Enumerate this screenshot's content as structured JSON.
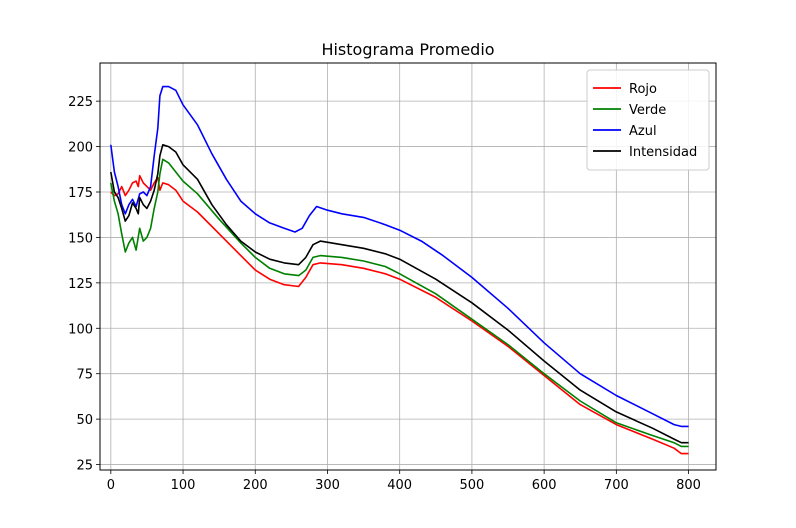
{
  "chart_data": {
    "type": "line",
    "title": "Histograma Promedio",
    "xlabel": "",
    "ylabel": "",
    "xlim": [
      -15,
      838
    ],
    "ylim": [
      22,
      246
    ],
    "xticks": [
      0,
      100,
      200,
      300,
      400,
      500,
      600,
      700,
      800
    ],
    "yticks": [
      25,
      50,
      75,
      100,
      125,
      150,
      175,
      200,
      225
    ],
    "grid": true,
    "legend_position": "top-right",
    "series": [
      {
        "name": "Rojo",
        "color": "#ff0000",
        "points": [
          [
            0,
            175
          ],
          [
            5,
            173
          ],
          [
            10,
            174
          ],
          [
            15,
            178
          ],
          [
            20,
            173
          ],
          [
            25,
            176
          ],
          [
            30,
            180
          ],
          [
            35,
            181
          ],
          [
            38,
            178
          ],
          [
            40,
            184
          ],
          [
            45,
            180
          ],
          [
            50,
            178
          ],
          [
            55,
            176
          ],
          [
            60,
            180
          ],
          [
            65,
            183
          ],
          [
            68,
            176
          ],
          [
            72,
            180
          ],
          [
            80,
            179
          ],
          [
            90,
            176
          ],
          [
            100,
            170
          ],
          [
            120,
            164
          ],
          [
            150,
            152
          ],
          [
            180,
            140
          ],
          [
            200,
            132
          ],
          [
            220,
            127
          ],
          [
            240,
            124
          ],
          [
            260,
            123
          ],
          [
            270,
            128
          ],
          [
            280,
            135
          ],
          [
            290,
            136
          ],
          [
            320,
            135
          ],
          [
            350,
            133
          ],
          [
            380,
            130
          ],
          [
            400,
            127
          ],
          [
            450,
            117
          ],
          [
            500,
            104
          ],
          [
            550,
            90
          ],
          [
            600,
            74
          ],
          [
            650,
            58
          ],
          [
            700,
            47
          ],
          [
            750,
            39
          ],
          [
            780,
            34
          ],
          [
            790,
            31
          ],
          [
            800,
            31
          ]
        ]
      },
      {
        "name": "Verde",
        "color": "#008000",
        "points": [
          [
            0,
            180
          ],
          [
            5,
            170
          ],
          [
            10,
            163
          ],
          [
            15,
            152
          ],
          [
            20,
            142
          ],
          [
            25,
            147
          ],
          [
            30,
            150
          ],
          [
            35,
            143
          ],
          [
            40,
            155
          ],
          [
            45,
            148
          ],
          [
            50,
            150
          ],
          [
            55,
            155
          ],
          [
            60,
            166
          ],
          [
            65,
            175
          ],
          [
            68,
            185
          ],
          [
            72,
            193
          ],
          [
            80,
            191
          ],
          [
            90,
            186
          ],
          [
            100,
            181
          ],
          [
            120,
            174
          ],
          [
            150,
            160
          ],
          [
            180,
            147
          ],
          [
            200,
            139
          ],
          [
            220,
            133
          ],
          [
            240,
            130
          ],
          [
            260,
            129
          ],
          [
            270,
            132
          ],
          [
            280,
            139
          ],
          [
            290,
            140
          ],
          [
            320,
            139
          ],
          [
            350,
            137
          ],
          [
            380,
            134
          ],
          [
            400,
            130
          ],
          [
            450,
            119
          ],
          [
            500,
            105
          ],
          [
            550,
            91
          ],
          [
            600,
            75
          ],
          [
            650,
            60
          ],
          [
            700,
            48
          ],
          [
            750,
            41
          ],
          [
            780,
            37
          ],
          [
            790,
            35
          ],
          [
            800,
            35
          ]
        ]
      },
      {
        "name": "Azul",
        "color": "#0000ff",
        "points": [
          [
            0,
            201
          ],
          [
            5,
            186
          ],
          [
            10,
            178
          ],
          [
            15,
            168
          ],
          [
            20,
            163
          ],
          [
            25,
            168
          ],
          [
            30,
            171
          ],
          [
            35,
            167
          ],
          [
            40,
            174
          ],
          [
            45,
            175
          ],
          [
            50,
            173
          ],
          [
            55,
            178
          ],
          [
            60,
            195
          ],
          [
            65,
            210
          ],
          [
            68,
            228
          ],
          [
            72,
            233
          ],
          [
            80,
            233
          ],
          [
            90,
            231
          ],
          [
            100,
            223
          ],
          [
            120,
            212
          ],
          [
            140,
            196
          ],
          [
            160,
            182
          ],
          [
            180,
            170
          ],
          [
            200,
            163
          ],
          [
            220,
            158
          ],
          [
            240,
            155
          ],
          [
            255,
            153
          ],
          [
            265,
            155
          ],
          [
            275,
            162
          ],
          [
            285,
            167
          ],
          [
            300,
            165
          ],
          [
            320,
            163
          ],
          [
            350,
            161
          ],
          [
            380,
            157
          ],
          [
            400,
            154
          ],
          [
            430,
            148
          ],
          [
            460,
            140
          ],
          [
            500,
            128
          ],
          [
            550,
            111
          ],
          [
            600,
            92
          ],
          [
            650,
            75
          ],
          [
            700,
            63
          ],
          [
            750,
            53
          ],
          [
            780,
            47
          ],
          [
            790,
            46
          ],
          [
            800,
            46
          ]
        ]
      },
      {
        "name": "Intensidad",
        "color": "#000000",
        "points": [
          [
            0,
            186
          ],
          [
            5,
            175
          ],
          [
            10,
            172
          ],
          [
            15,
            166
          ],
          [
            20,
            159
          ],
          [
            25,
            162
          ],
          [
            30,
            169
          ],
          [
            35,
            166
          ],
          [
            38,
            163
          ],
          [
            40,
            172
          ],
          [
            45,
            168
          ],
          [
            50,
            166
          ],
          [
            55,
            170
          ],
          [
            60,
            176
          ],
          [
            65,
            185
          ],
          [
            68,
            195
          ],
          [
            72,
            201
          ],
          [
            80,
            200
          ],
          [
            90,
            197
          ],
          [
            100,
            190
          ],
          [
            120,
            182
          ],
          [
            140,
            168
          ],
          [
            160,
            157
          ],
          [
            180,
            148
          ],
          [
            200,
            142
          ],
          [
            220,
            138
          ],
          [
            240,
            136
          ],
          [
            260,
            135
          ],
          [
            270,
            139
          ],
          [
            280,
            146
          ],
          [
            290,
            148
          ],
          [
            320,
            146
          ],
          [
            350,
            144
          ],
          [
            380,
            141
          ],
          [
            400,
            138
          ],
          [
            450,
            127
          ],
          [
            500,
            114
          ],
          [
            550,
            99
          ],
          [
            600,
            82
          ],
          [
            650,
            66
          ],
          [
            700,
            54
          ],
          [
            750,
            45
          ],
          [
            780,
            39
          ],
          [
            790,
            37
          ],
          [
            800,
            37
          ]
        ]
      }
    ]
  }
}
